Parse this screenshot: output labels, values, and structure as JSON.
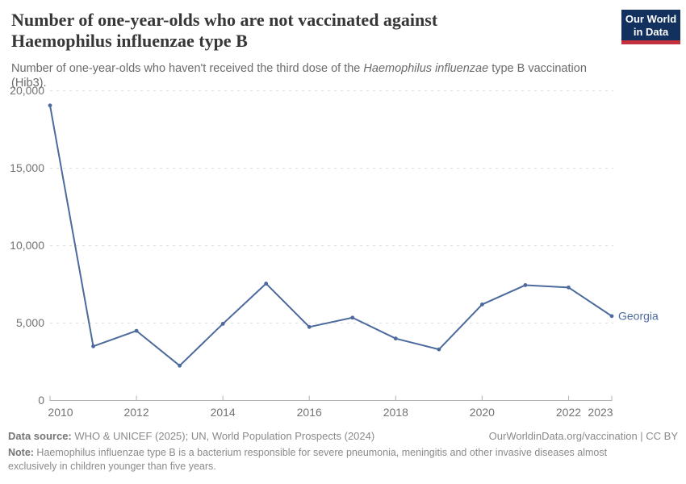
{
  "header": {
    "title_line1": "Number of one-year-olds who are not vaccinated against",
    "title_line2": "Haemophilus influenzae type B",
    "subtitle_prefix": "Number of one-year-olds who haven't received the third dose of the ",
    "subtitle_italic": "Haemophilus influenzae",
    "subtitle_suffix": " type B vaccination (Hib3).",
    "logo": {
      "line1": "Our World",
      "line2": "in Data",
      "bg_color": "#12315f",
      "accent_color": "#c5303e",
      "text_color": "#ffffff"
    }
  },
  "chart_data": {
    "type": "line",
    "title": "Number of one-year-olds who are not vaccinated against Haemophilus influenzae type B",
    "x": [
      2010,
      2011,
      2012,
      2013,
      2014,
      2015,
      2016,
      2017,
      2018,
      2019,
      2020,
      2021,
      2022,
      2023
    ],
    "series": [
      {
        "name": "Georgia",
        "color": "#4c6a9c",
        "values": [
          19050,
          3500,
          4500,
          2250,
          4950,
          7550,
          4750,
          5350,
          4000,
          3300,
          6200,
          7450,
          7300,
          5450
        ]
      }
    ],
    "x_ticks": [
      2010,
      2012,
      2014,
      2016,
      2018,
      2020,
      2022,
      2023
    ],
    "x_tick_labels": [
      "2010",
      "2012",
      "2014",
      "2016",
      "2018",
      "2020",
      "2022",
      "2023"
    ],
    "y_ticks": [
      0,
      5000,
      10000,
      15000,
      20000
    ],
    "y_tick_labels": [
      "0",
      "5,000",
      "10,000",
      "15,000",
      "20,000"
    ],
    "xlim": [
      2010,
      2023
    ],
    "ylim": [
      0,
      20000
    ],
    "grid": "horizontal-dashed",
    "legend_position": "end-of-line",
    "entity_label": "Georgia"
  },
  "colors": {
    "line": "#4c6a9c",
    "grid": "#dddddd",
    "axis": "#b3b3b3",
    "tick_label": "#737373",
    "title": "#373737",
    "subtitle": "#6b6b6b",
    "footer": "#8a8a8a"
  },
  "footer": {
    "datasource_label": "Data source:",
    "datasource_text": " WHO & UNICEF (2025); UN, World Population Prospects (2024)",
    "license_text": "OurWorldinData.org/vaccination | CC BY",
    "note_label": "Note:",
    "note_text": " Haemophilus influenzae type B is a bacterium responsible for severe pneumonia, meningitis and other invasive diseases almost exclusively in children younger than five years."
  }
}
